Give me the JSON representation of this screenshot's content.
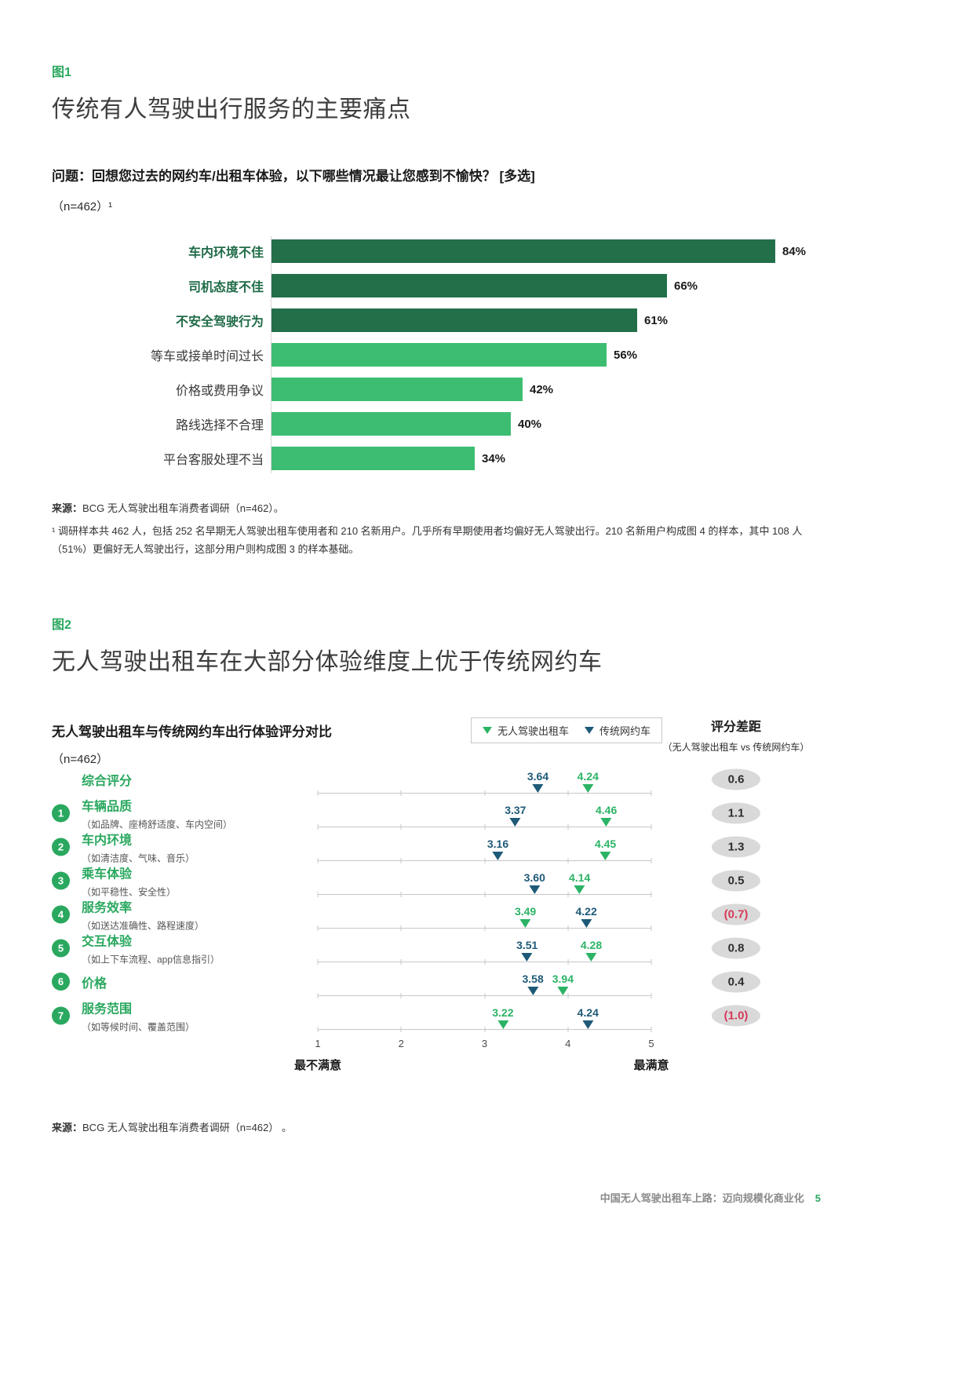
{
  "colors": {
    "accent_green": "#2aa85f",
    "bar_dark_green": "#236f4a",
    "bar_light_green": "#3dbd72",
    "marker_green": "#2bb365",
    "marker_navy": "#1e5a78",
    "gap_badge_bg": "#d9d9d9",
    "negative_red": "#d63a5a"
  },
  "fig1": {
    "tag": "图1",
    "title": "传统有人驾驶出行服务的主要痛点",
    "question": "问题：回想您过去的网约车/出租车体验，以下哪些情况最让您感到不愉快？ [多选]",
    "sample_note": "（n=462）¹",
    "source_label": "来源：",
    "source_text": "BCG 无人驾驶出租车消费者调研（n=462）。",
    "footnote": "¹ 调研样本共 462 人，包括 252 名早期无人驾驶出租车使用者和 210 名新用户。几乎所有早期使用者均偏好无人驾驶出行。210 名新用户构成图 4 的样本，其中 108 人（51%）更偏好无人驾驶出行，这部分用户则构成图 3 的样本基础。",
    "chart_data": {
      "type": "bar",
      "orientation": "horizontal",
      "categories": [
        "车内环境不佳",
        "司机态度不佳",
        "不安全驾驶行为",
        "等车或接单时间过长",
        "价格或费用争议",
        "路线选择不合理",
        "平台客服处理不当"
      ],
      "values": [
        84,
        66,
        61,
        56,
        42,
        40,
        34
      ],
      "emphasized": [
        true,
        true,
        true,
        false,
        false,
        false,
        false
      ],
      "value_suffix": "%",
      "xlim": [
        0,
        100
      ]
    }
  },
  "fig2": {
    "tag": "图2",
    "title": "无人驾驶出租车在大部分体验维度上优于传统网约车",
    "subtitle": "无人驾驶出租车与传统网约车出行体验评分对比",
    "sample_note": "（n=462）",
    "legend": [
      {
        "label": "无人驾驶出租车",
        "color": "#2bb365"
      },
      {
        "label": "传统网约车",
        "color": "#1e5a78"
      }
    ],
    "gap_header": "评分差距",
    "gap_subheader": "（无人驾驶出租车 vs 传统网约车）",
    "axis": {
      "ticks": [
        "1",
        "2",
        "3",
        "4",
        "5"
      ],
      "min_label": "最不满意",
      "max_label": "最满意"
    },
    "source_label": "来源：",
    "source_text": "BCG 无人驾驶出租车消费者调研（n=462） 。",
    "chart_data": {
      "type": "scatter",
      "scale_min": 1,
      "scale_max": 5,
      "series_names": [
        "无人驾驶出租车",
        "传统网约车"
      ],
      "rows": [
        {
          "num": "",
          "label": "综合评分",
          "sub": "",
          "robotaxi": 4.24,
          "traditional": 3.64,
          "gap": "0.6",
          "gap_negative": false
        },
        {
          "num": "1",
          "label": "车辆品质",
          "sub": "（如品牌、座椅舒适度、车内空间）",
          "robotaxi": 4.46,
          "traditional": 3.37,
          "gap": "1.1",
          "gap_negative": false
        },
        {
          "num": "2",
          "label": "车内环境",
          "sub": "（如清洁度、气味、音乐）",
          "robotaxi": 4.45,
          "traditional": 3.16,
          "gap": "1.3",
          "gap_negative": false
        },
        {
          "num": "3",
          "label": "乘车体验",
          "sub": "（如平稳性、安全性）",
          "robotaxi": 4.14,
          "traditional": 3.6,
          "gap": "0.5",
          "gap_negative": false
        },
        {
          "num": "4",
          "label": "服务效率",
          "sub": "（如送达准确性、路程速度）",
          "robotaxi": 3.49,
          "traditional": 4.22,
          "gap": "(0.7)",
          "gap_negative": true
        },
        {
          "num": "5",
          "label": "交互体验",
          "sub": "（如上下车流程、app信息指引）",
          "robotaxi": 4.28,
          "traditional": 3.51,
          "gap": "0.8",
          "gap_negative": false
        },
        {
          "num": "6",
          "label": "价格",
          "sub": "",
          "robotaxi": 3.94,
          "traditional": 3.58,
          "gap": "0.4",
          "gap_negative": false
        },
        {
          "num": "7",
          "label": "服务范围",
          "sub": "（如等候时间、覆盖范围）",
          "robotaxi": 3.22,
          "traditional": 4.24,
          "gap": "(1.0)",
          "gap_negative": true
        }
      ]
    }
  },
  "footer": {
    "text": "中国无人驾驶出租车上路：迈向规模化商业化",
    "page": "5"
  }
}
